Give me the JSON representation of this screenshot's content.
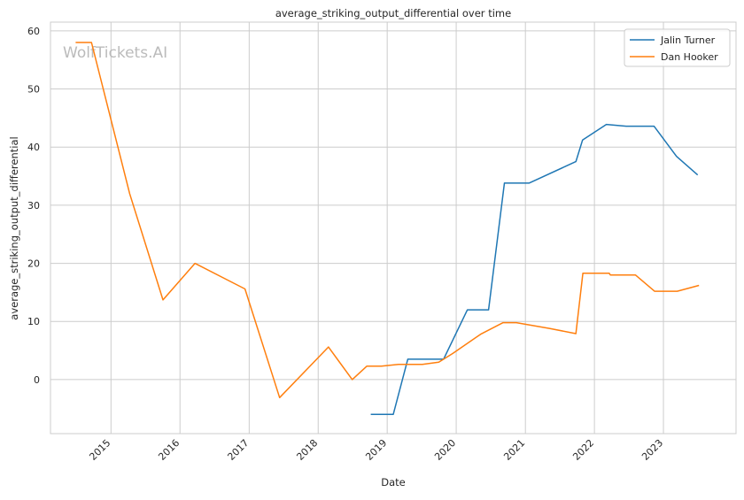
{
  "chart_data": {
    "type": "line",
    "title": "average_striking_output_differential over time",
    "xlabel": "Date",
    "ylabel": "average_striking_output_differential",
    "watermark": "WolfTickets.AI",
    "x_ticks": [
      "2015",
      "2016",
      "2017",
      "2018",
      "2019",
      "2020",
      "2021",
      "2022",
      "2023"
    ],
    "y_ticks": [
      0,
      10,
      20,
      30,
      40,
      50,
      60
    ],
    "xlim": [
      "2014-02-15",
      "2024-01-20"
    ],
    "ylim": [
      -9.3,
      61.5
    ],
    "grid": true,
    "legend_position": "top-right",
    "series": [
      {
        "name": "Jalin Turner",
        "color": "#1f77b4",
        "points": [
          [
            "2018-10-06",
            -6
          ],
          [
            "2019-02-02",
            -6
          ],
          [
            "2019-04-20",
            3.5
          ],
          [
            "2019-10-26",
            3.5
          ],
          [
            "2020-02-29",
            12
          ],
          [
            "2020-06-20",
            12
          ],
          [
            "2020-09-12",
            33.8
          ],
          [
            "2021-01-20",
            33.8
          ],
          [
            "2021-09-25",
            37.5
          ],
          [
            "2021-10-30",
            41.2
          ],
          [
            "2022-03-05",
            43.9
          ],
          [
            "2022-06-18",
            43.6
          ],
          [
            "2022-11-12",
            43.6
          ],
          [
            "2023-03-11",
            38.4
          ],
          [
            "2023-07-01",
            35.2
          ]
        ]
      },
      {
        "name": "Dan Hooker",
        "color": "#ff7f0e",
        "points": [
          [
            "2014-06-28",
            58
          ],
          [
            "2014-09-20",
            58
          ],
          [
            "2015-04-10",
            32
          ],
          [
            "2015-10-03",
            13.7
          ],
          [
            "2016-03-20",
            20
          ],
          [
            "2016-12-10",
            15.6
          ],
          [
            "2017-06-11",
            -3.1
          ],
          [
            "2018-02-24",
            5.6
          ],
          [
            "2018-06-30",
            0
          ],
          [
            "2018-09-15",
            2.3
          ],
          [
            "2018-12-01",
            2.3
          ],
          [
            "2019-03-02",
            2.6
          ],
          [
            "2019-07-06",
            2.6
          ],
          [
            "2019-10-01",
            3.0
          ],
          [
            "2019-12-14",
            4.5
          ],
          [
            "2020-05-09",
            7.8
          ],
          [
            "2020-09-05",
            9.8
          ],
          [
            "2020-11-14",
            9.8
          ],
          [
            "2021-05-08",
            8.8
          ],
          [
            "2021-09-25",
            7.9
          ],
          [
            "2021-11-01",
            18.3
          ],
          [
            "2022-03-20",
            18.3
          ],
          [
            "2022-03-26",
            18.0
          ],
          [
            "2022-08-06",
            18.0
          ],
          [
            "2022-11-15",
            15.2
          ],
          [
            "2023-03-15",
            15.2
          ],
          [
            "2023-07-08",
            16.2
          ]
        ]
      }
    ]
  }
}
